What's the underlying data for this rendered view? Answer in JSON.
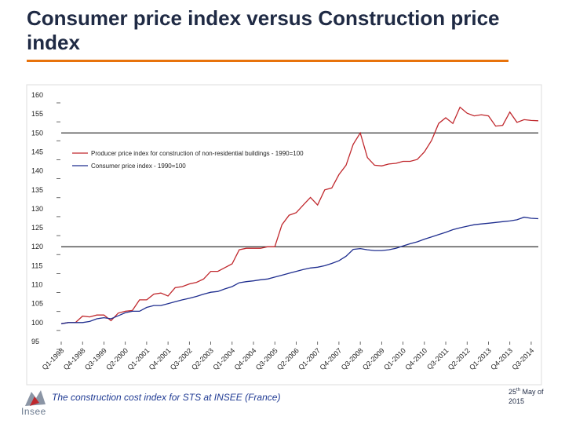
{
  "slide": {
    "title": "Consumer price index versus Construction price index",
    "footer_caption": "The construction cost index for STS at INSEE (France)",
    "footer_date_day": "25",
    "footer_date_suffix": "th",
    "footer_date_rest": " May of 2015",
    "logo_text": "Insee",
    "accent_color": "#e8730c"
  },
  "chart_data": {
    "type": "line",
    "ylim": [
      95,
      160
    ],
    "yticks": [
      95,
      100,
      105,
      110,
      115,
      120,
      125,
      130,
      135,
      140,
      145,
      150,
      155,
      160
    ],
    "xtick_labels": [
      "Q1-1998",
      "Q4-1998",
      "Q3-1999",
      "Q2-2000",
      "Q1-2001",
      "Q4-2001",
      "Q3-2002",
      "Q2-2003",
      "Q1-2004",
      "Q4-2004",
      "Q3-2005",
      "Q2-2006",
      "Q1-2007",
      "Q4-2007",
      "Q3-2008",
      "Q2-2009",
      "Q1-2010",
      "Q4-2010",
      "Q3-2011",
      "Q2-2012",
      "Q1-2013",
      "Q4-2013",
      "Q3-2014"
    ],
    "xtick_positions": [
      0,
      3,
      6,
      9,
      12,
      15,
      18,
      21,
      24,
      27,
      30,
      33,
      36,
      39,
      42,
      45,
      48,
      51,
      54,
      57,
      60,
      63,
      66
    ],
    "n_points": 68,
    "grid_lines_y": [
      120,
      150
    ],
    "legend_position": "top-left",
    "series": [
      {
        "name": "Producer price index for construction of non-residential buildings - 1990=100",
        "color": "#c0282d",
        "values": [
          99.7,
          100,
          100,
          101.7,
          101.5,
          102,
          102,
          100.5,
          102.5,
          103,
          103.2,
          106,
          106,
          107.5,
          107.8,
          107,
          109.2,
          109.5,
          110.2,
          110.6,
          111.5,
          113.5,
          113.5,
          114.5,
          115.5,
          119.2,
          119.6,
          119.6,
          119.6,
          120,
          120,
          125.8,
          128.3,
          129,
          131,
          133,
          131,
          135,
          135.5,
          139,
          141.5,
          147,
          150,
          143.5,
          141.5,
          141.3,
          141.8,
          142,
          142.5,
          142.5,
          143,
          145,
          148,
          152.5,
          154,
          152.5,
          156.8,
          155.2,
          154.5,
          154.8,
          154.5,
          151.8,
          152,
          155.5,
          152.8,
          153.5,
          153.3,
          153.2
        ]
      },
      {
        "name": "Consumer price index - 1990=100",
        "color": "#1f2e8f",
        "values": [
          99.7,
          100,
          100,
          100,
          100.3,
          101,
          101.3,
          101,
          101.8,
          102.6,
          103,
          103,
          104,
          104.5,
          104.5,
          105,
          105.5,
          106,
          106.4,
          106.9,
          107.5,
          108,
          108.2,
          108.9,
          109.5,
          110.5,
          110.8,
          111,
          111.3,
          111.5,
          112,
          112.5,
          113,
          113.5,
          114,
          114.4,
          114.6,
          115,
          115.6,
          116.3,
          117.5,
          119.3,
          119.5,
          119.2,
          119,
          119,
          119.2,
          119.6,
          120.2,
          120.8,
          121.3,
          122,
          122.6,
          123.2,
          123.8,
          124.5,
          125,
          125.4,
          125.8,
          126,
          126.2,
          126.4,
          126.6,
          126.8,
          127.1,
          127.8,
          127.5,
          127.4
        ]
      }
    ]
  }
}
